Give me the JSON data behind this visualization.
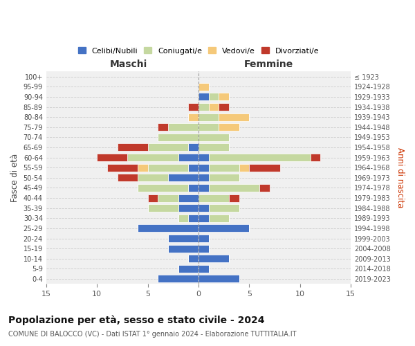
{
  "age_groups": [
    "0-4",
    "5-9",
    "10-14",
    "15-19",
    "20-24",
    "25-29",
    "30-34",
    "35-39",
    "40-44",
    "45-49",
    "50-54",
    "55-59",
    "60-64",
    "65-69",
    "70-74",
    "75-79",
    "80-84",
    "85-89",
    "90-94",
    "95-99",
    "100+"
  ],
  "birth_years": [
    "2019-2023",
    "2014-2018",
    "2009-2013",
    "2004-2008",
    "1999-2003",
    "1994-1998",
    "1989-1993",
    "1984-1988",
    "1979-1983",
    "1974-1978",
    "1969-1973",
    "1964-1968",
    "1959-1963",
    "1954-1958",
    "1949-1953",
    "1944-1948",
    "1939-1943",
    "1934-1938",
    "1929-1933",
    "1924-1928",
    "≤ 1923"
  ],
  "males": {
    "celibi": [
      4,
      2,
      1,
      3,
      3,
      6,
      1,
      2,
      2,
      1,
      3,
      1,
      2,
      1,
      0,
      0,
      0,
      0,
      0,
      0,
      0
    ],
    "coniugati": [
      0,
      0,
      0,
      0,
      0,
      0,
      1,
      3,
      2,
      5,
      3,
      4,
      5,
      4,
      4,
      3,
      0,
      0,
      0,
      0,
      0
    ],
    "vedovi": [
      0,
      0,
      0,
      0,
      0,
      0,
      0,
      0,
      0,
      0,
      0,
      1,
      0,
      0,
      0,
      0,
      1,
      0,
      0,
      0,
      0
    ],
    "divorziati": [
      0,
      0,
      0,
      0,
      0,
      0,
      0,
      0,
      1,
      0,
      2,
      3,
      3,
      3,
      0,
      1,
      0,
      1,
      0,
      0,
      0
    ]
  },
  "females": {
    "nubili": [
      4,
      1,
      3,
      1,
      1,
      5,
      1,
      1,
      0,
      1,
      1,
      1,
      1,
      0,
      0,
      0,
      0,
      0,
      1,
      0,
      0
    ],
    "coniugate": [
      0,
      0,
      0,
      0,
      0,
      0,
      2,
      3,
      3,
      5,
      3,
      3,
      10,
      3,
      3,
      2,
      2,
      1,
      1,
      0,
      0
    ],
    "vedove": [
      0,
      0,
      0,
      0,
      0,
      0,
      0,
      0,
      0,
      0,
      0,
      1,
      0,
      0,
      0,
      2,
      3,
      1,
      1,
      1,
      0
    ],
    "divorziate": [
      0,
      0,
      0,
      0,
      0,
      0,
      0,
      0,
      1,
      1,
      0,
      3,
      1,
      0,
      0,
      0,
      0,
      1,
      0,
      0,
      0
    ]
  },
  "colors": {
    "celibi": "#4472c4",
    "coniugati": "#c5d8a0",
    "vedovi": "#f5c97a",
    "divorziati": "#c0392b"
  },
  "legend_labels": [
    "Celibi/Nubili",
    "Coniugati/e",
    "Vedovi/e",
    "Divorziati/e"
  ],
  "xlim": 15,
  "title": "Popolazione per età, sesso e stato civile - 2024",
  "subtitle": "COMUNE DI BALOCCO (VC) - Dati ISTAT 1° gennaio 2024 - Elaborazione TUTTITALIA.IT",
  "xlabel_left": "Maschi",
  "xlabel_right": "Femmine",
  "ylabel_left": "Fasce di età",
  "ylabel_right": "Anni di nascita",
  "background_color": "#ffffff",
  "plot_bg": "#f0f0f0"
}
